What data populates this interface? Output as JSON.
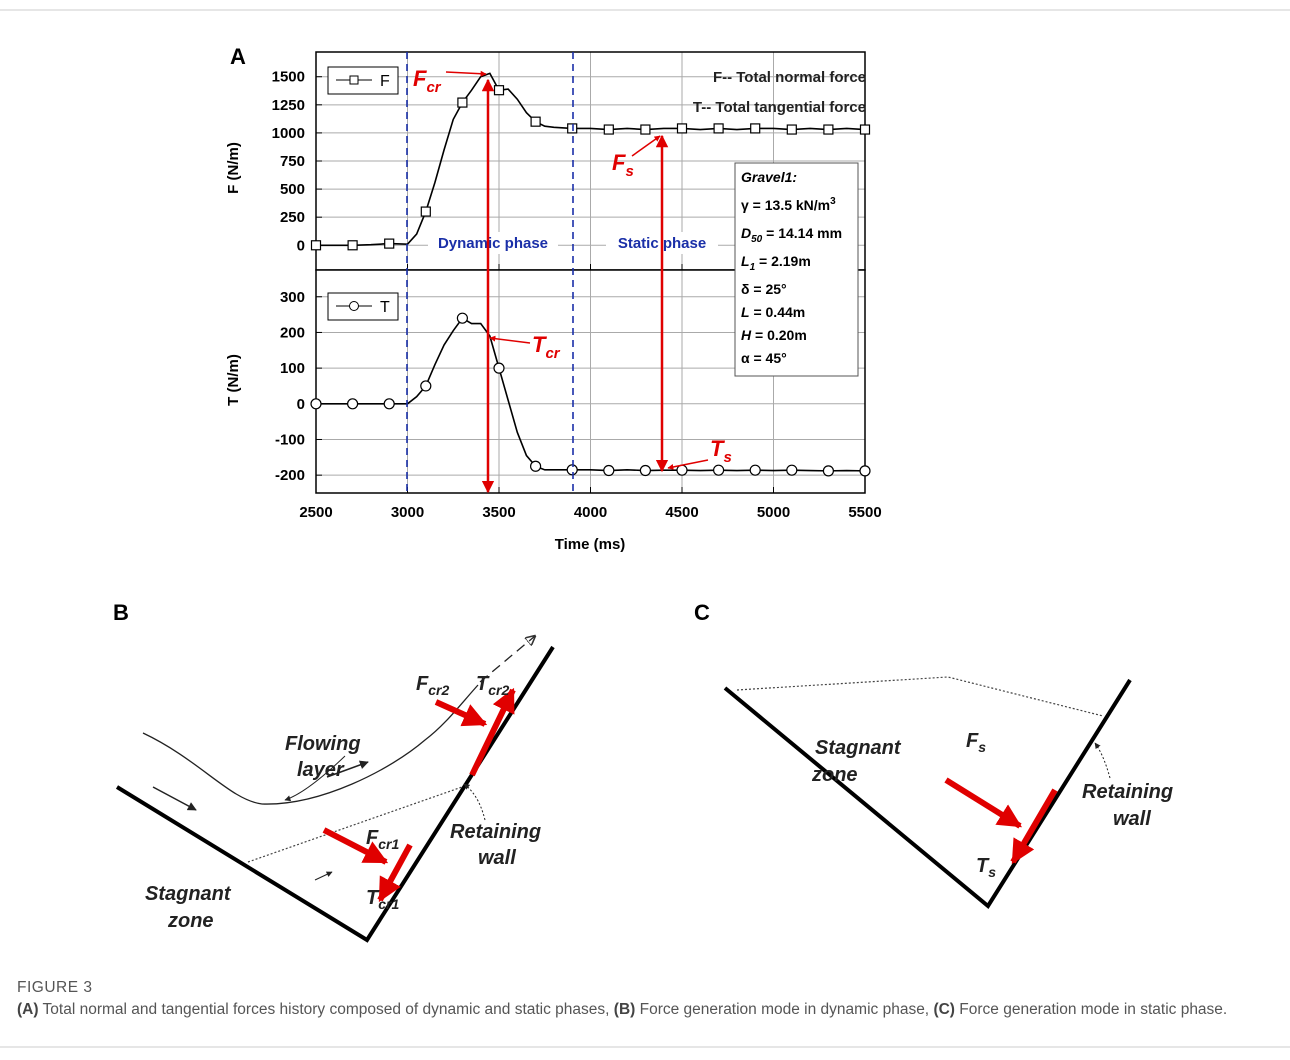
{
  "chart_data": [
    {
      "type": "line",
      "panel_label": "A",
      "x": [
        2500,
        2600,
        2700,
        2800,
        2900,
        3000,
        3050,
        3100,
        3150,
        3200,
        3250,
        3300,
        3350,
        3400,
        3450,
        3500,
        3550,
        3600,
        3650,
        3700,
        3750,
        3800,
        3900,
        4000,
        4100,
        4200,
        4300,
        4400,
        4500,
        4600,
        4700,
        4800,
        4900,
        5000,
        5100,
        5200,
        5300,
        5400,
        5500
      ],
      "xlim": [
        2500,
        5500
      ],
      "ylim": [
        -220,
        1720
      ],
      "yticks": [
        0,
        250,
        500,
        750,
        1000,
        1250,
        1500
      ],
      "ylabel": "F (N/m)",
      "grid": true,
      "series": [
        {
          "name": "F",
          "color": "#000000",
          "marker": "square",
          "values": [
            0,
            0,
            0,
            5,
            15,
            10,
            100,
            300,
            560,
            850,
            1120,
            1270,
            1380,
            1500,
            1530,
            1380,
            1390,
            1300,
            1180,
            1100,
            1060,
            1050,
            1040,
            1040,
            1030,
            1040,
            1030,
            1040,
            1040,
            1030,
            1040,
            1030,
            1040,
            1040,
            1030,
            1040,
            1030,
            1040,
            1030
          ]
        }
      ],
      "annotations": {
        "normal": "F-- Total normal force",
        "tangential": "T-- Total tangential force",
        "dynamic": "Dynamic phase",
        "static": "Static phase",
        "f_cr": [
          "F",
          "cr"
        ],
        "f_s": [
          "F",
          "s"
        ],
        "t_cr": [
          "T",
          "cr"
        ],
        "t_s": [
          "T",
          "s"
        ]
      },
      "info_box": [
        [
          "Gravel1:"
        ],
        [
          "γ = 13.5 kN/m",
          "3"
        ],
        [
          "D",
          "50",
          " = 14.14 mm"
        ],
        [
          "L",
          "1",
          " = 2.19m"
        ],
        [
          "δ = 25°"
        ],
        [
          "L",
          " = 0.44m"
        ],
        [
          "H",
          " = 0.20m"
        ],
        [
          "α = 45°"
        ]
      ]
    },
    {
      "type": "line",
      "x": [
        2500,
        2600,
        2700,
        2800,
        2900,
        3000,
        3050,
        3100,
        3150,
        3200,
        3250,
        3300,
        3350,
        3400,
        3450,
        3500,
        3550,
        3600,
        3650,
        3700,
        3750,
        3800,
        3900,
        4000,
        4100,
        4200,
        4300,
        4400,
        4500,
        4600,
        4700,
        4800,
        4900,
        5000,
        5100,
        5200,
        5300,
        5400,
        5500
      ],
      "xlim": [
        2500,
        5500
      ],
      "xticks": [
        2500,
        3000,
        3500,
        4000,
        4500,
        5000,
        5500
      ],
      "xlabel": "Time (ms)",
      "ylim": [
        -250,
        375
      ],
      "yticks": [
        -200,
        -100,
        0,
        100,
        200,
        300
      ],
      "ylabel": "T (N/m)",
      "grid": true,
      "series": [
        {
          "name": "T",
          "color": "#000000",
          "marker": "circle",
          "values": [
            0,
            0,
            0,
            0,
            0,
            0,
            20,
            50,
            110,
            165,
            205,
            240,
            225,
            225,
            190,
            100,
            10,
            -80,
            -145,
            -175,
            -185,
            -185,
            -185,
            -185,
            -187,
            -185,
            -187,
            -186,
            -186,
            -187,
            -186,
            -187,
            -186,
            -187,
            -186,
            -187,
            -188,
            -187,
            -188
          ]
        }
      ]
    }
  ],
  "diagram_b": {
    "label": "B",
    "flowing": [
      "Flowing",
      "layer"
    ],
    "wall": [
      "Retaining",
      "wall"
    ],
    "stagnant": [
      "Stagnant",
      "zone"
    ],
    "f_cr2": [
      "F",
      "cr2"
    ],
    "t_cr2": [
      "T",
      "cr2"
    ],
    "f_cr1": [
      "F",
      "cr1"
    ],
    "t_cr1": [
      "T",
      "cr1"
    ]
  },
  "diagram_c": {
    "label": "C",
    "stagnant": [
      "Stagnant",
      "zone"
    ],
    "wall": [
      "Retaining",
      "wall"
    ],
    "f_s": [
      "F",
      "s"
    ],
    "t_s": [
      "T",
      "s"
    ]
  },
  "caption": {
    "figure": "FIGURE 3",
    "parts": [
      "(A)",
      " Total normal and tangential forces history composed of dynamic and static phases, ",
      "(B)",
      " Force generation mode in dynamic phase, ",
      "(C)",
      " Force generation mode in static phase."
    ]
  }
}
